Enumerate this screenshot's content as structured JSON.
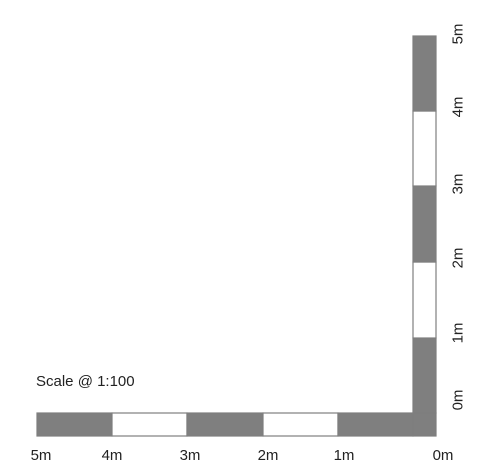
{
  "caption": "Scale @ 1:100",
  "colors": {
    "dark_segment": "#7f7f7f",
    "light_segment": "#ffffff",
    "outline": "#7f7f7f",
    "text": "#222222"
  },
  "horizontal_bar": {
    "labels": [
      "5m",
      "4m",
      "3m",
      "2m",
      "1m",
      "0m"
    ],
    "segments": [
      "dark",
      "light",
      "dark",
      "light",
      "dark",
      "dark"
    ]
  },
  "vertical_bar": {
    "labels": [
      "0m",
      "1m",
      "2m",
      "3m",
      "4m",
      "5m"
    ],
    "segments": [
      "dark",
      "light",
      "dark",
      "light",
      "dark"
    ]
  }
}
